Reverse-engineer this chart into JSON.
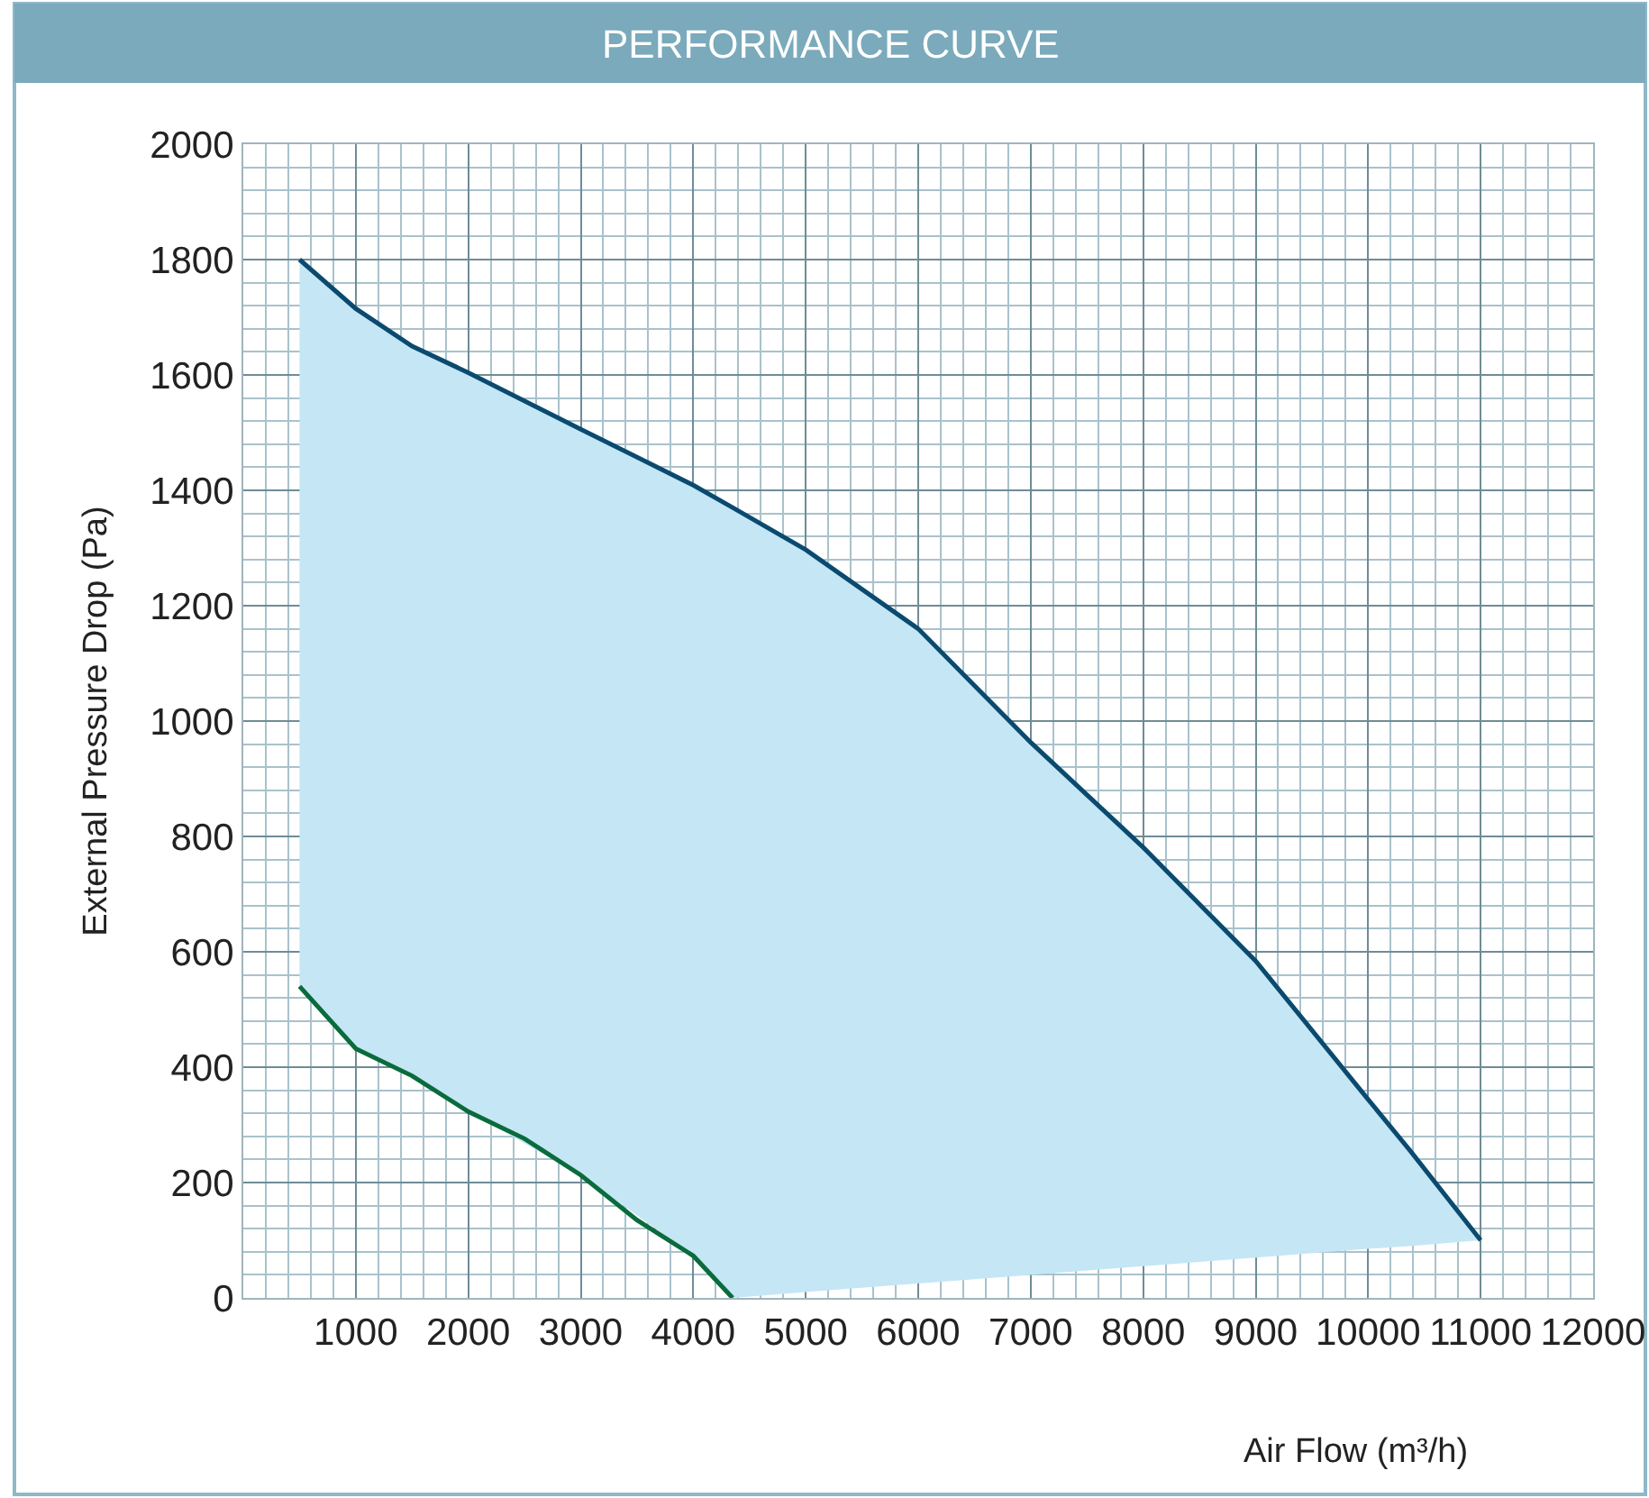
{
  "chart_data": {
    "type": "line",
    "title": "PERFORMANCE CURVE",
    "xlabel": "Air Flow (m³/h)",
    "ylabel": "External Pressure Drop (Pa)",
    "xlim": [
      0,
      12000
    ],
    "xticks": [
      1000,
      2000,
      3000,
      4000,
      5000,
      6000,
      7000,
      8000,
      9000,
      10000,
      11000,
      12000
    ],
    "ylim": [
      0,
      2000
    ],
    "yticks": [
      0,
      200,
      400,
      600,
      800,
      1000,
      1200,
      1400,
      1600,
      1800,
      2000
    ],
    "grid": true,
    "marker": "none",
    "line_style": "solid",
    "series": [
      {
        "color": "#0b4a6f",
        "x": [
          500,
          1000,
          1500,
          2000,
          3000,
          4000,
          4350,
          5000,
          6000,
          7000,
          8000,
          9000,
          10000,
          10370,
          11000
        ],
        "values": [
          1800,
          1715,
          1650,
          1604,
          1506,
          1409,
          1370,
          1297,
          1160,
          963,
          781,
          584,
          344,
          256,
          100
        ],
        "lower": [
          540,
          432,
          385,
          323,
          213,
          73,
          0,
          10,
          25,
          40,
          55,
          70,
          85,
          90,
          100
        ],
        "upper": [
          1800,
          1715,
          1650,
          1604,
          1506,
          1409,
          1370,
          1297,
          1160,
          963,
          781,
          584,
          344,
          256,
          100
        ]
      },
      {
        "color": "#0a6b3c",
        "x": [
          500,
          1000,
          1500,
          2000,
          2500,
          3000,
          3500,
          4000,
          4350
        ],
        "values": [
          540,
          432,
          385,
          323,
          276,
          213,
          135,
          73,
          0
        ]
      }
    ]
  }
}
